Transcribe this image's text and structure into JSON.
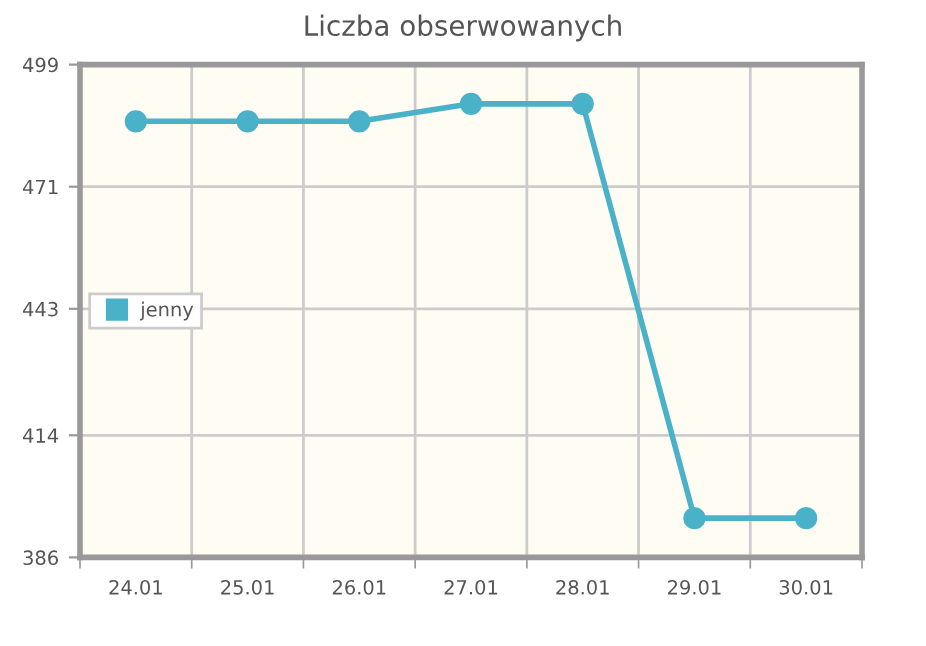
{
  "chart_data": {
    "type": "line",
    "title": "Liczba obserwowanych",
    "categories": [
      "24.01",
      "25.01",
      "26.01",
      "27.01",
      "28.01",
      "29.01",
      "30.01"
    ],
    "series": [
      {
        "name": "jenny",
        "color": "#4ab2c8",
        "values": [
          486,
          486,
          486,
          490,
          490,
          395,
          395
        ]
      }
    ],
    "ylim": [
      386,
      499
    ],
    "yticks": [
      386,
      414,
      443,
      471,
      499
    ],
    "grid": true,
    "legend": "left",
    "marker": "circle",
    "line_style": "solid"
  }
}
